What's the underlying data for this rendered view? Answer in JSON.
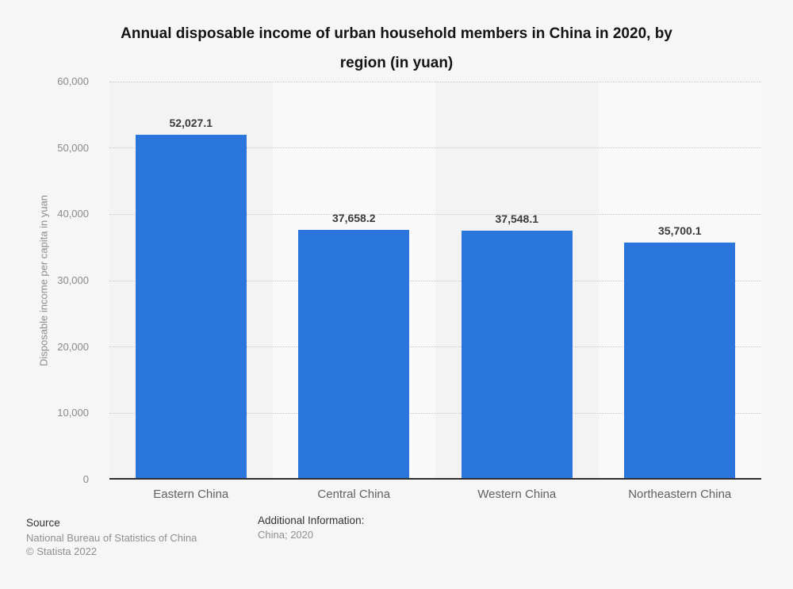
{
  "title": {
    "line1": "Annual disposable income of urban household members in China in 2020, by",
    "line2": "region (in yuan)"
  },
  "chart_data": {
    "type": "bar",
    "title": "Annual disposable income of urban household members in China in 2020, by region (in yuan)",
    "categories": [
      "Eastern China",
      "Central China",
      "Western China",
      "Northeastern China"
    ],
    "values": [
      52027.1,
      37658.2,
      37548.1,
      35700.1
    ],
    "value_labels": [
      "52,027.1",
      "37,658.2",
      "37,548.1",
      "35,700.1"
    ],
    "xlabel": "",
    "ylabel": "Disposable income per capita in yuan",
    "ylim": [
      0,
      60000
    ],
    "yticks": [
      {
        "value": 0,
        "label": "0"
      },
      {
        "value": 10000,
        "label": "10,000"
      },
      {
        "value": 20000,
        "label": "20,000"
      },
      {
        "value": 30000,
        "label": "30,000"
      },
      {
        "value": 40000,
        "label": "40,000"
      },
      {
        "value": 50000,
        "label": "50,000"
      },
      {
        "value": 60000,
        "label": "60,000"
      }
    ],
    "grid": "horizontal-dotted",
    "legend_position": "none"
  },
  "colors": {
    "bar": "#2b76dd",
    "background": "#f6f6f6",
    "band_dark": "#f3f3f4",
    "band_light": "#f9f9fa",
    "gridline": "#c9c9c9",
    "axis_line": "#2f2f2f"
  },
  "footer": {
    "source_label": "Source",
    "source_name": "National Bureau of Statistics of China",
    "copyright": "© Statista 2022",
    "additional_label": "Additional Information:",
    "additional_value": "China; 2020"
  }
}
